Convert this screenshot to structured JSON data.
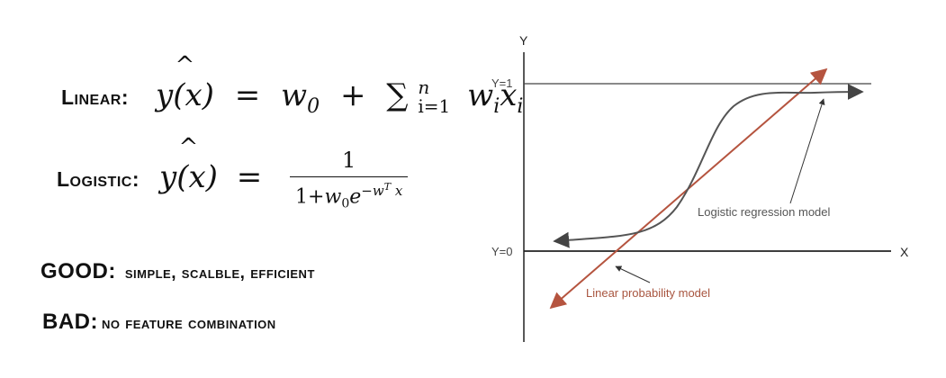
{
  "linear": {
    "label": "Linear:",
    "lhs": "y(x)",
    "hat": "^",
    "eq": "=",
    "w0": "w",
    "w0_sub": "0",
    "plus": "+",
    "sum": "∑",
    "upper": "n",
    "lower": "i=1",
    "term": "w",
    "term_sub": "i",
    "term_x": "x",
    "term_x_sub": "i"
  },
  "logistic": {
    "label": "Logistic:",
    "lhs": "y(x)",
    "hat": "^",
    "eq": "=",
    "numerator": "1",
    "den_prefix": "1+",
    "den_w": "w",
    "den_w_sub": "0",
    "den_e": "e",
    "den_exp": "−w",
    "den_exp_T": "T",
    "den_exp_x": "x"
  },
  "good": {
    "key": "GOOD:",
    "value": "simple, scalble, efficient"
  },
  "bad": {
    "key": "BAD:",
    "value": "no feature combination"
  },
  "chart": {
    "y_axis": "Y",
    "x_axis": "X",
    "y1": "Y=1",
    "y0": "Y=0",
    "logistic_label": "Logistic regression model",
    "linear_label": "Linear probability model",
    "colors": {
      "axis": "#222222",
      "curve": "#555555",
      "line": "#b5543f",
      "text": "#555555",
      "linear_text": "#a8553f"
    }
  }
}
